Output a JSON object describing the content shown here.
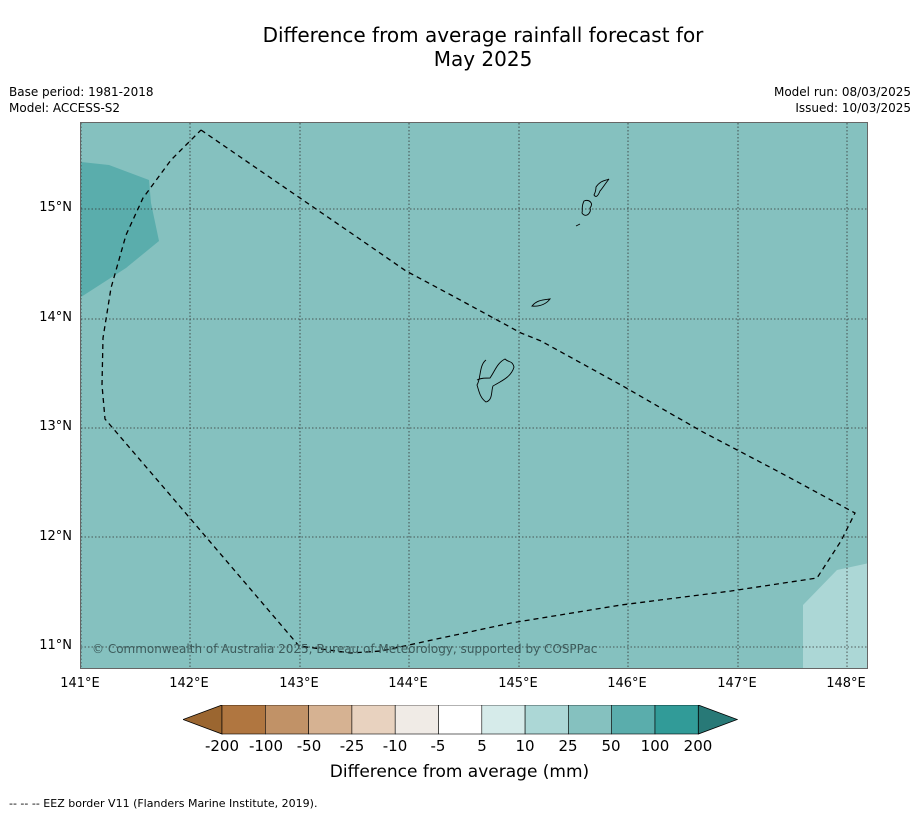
{
  "title_line1": "Difference from average rainfall forecast for",
  "title_line2": "May 2025",
  "meta": {
    "base_period": "Base period: 1981-2018",
    "model": "Model: ACCESS-S2",
    "model_run": "Model run: 08/03/2025",
    "issued": "Issued: 10/03/2025"
  },
  "map": {
    "lat_labels": [
      "15°N",
      "14°N",
      "13°N",
      "12°N",
      "11°N"
    ],
    "lon_labels": [
      "141°E",
      "142°E",
      "143°E",
      "144°E",
      "145°E",
      "146°E",
      "147°E",
      "148°E"
    ],
    "copyright": "© Commonwealth of Australia 2025, Bureau of Meteorology, supported by COSPPac",
    "background_color": "#85c1bf",
    "wet_patch_color": "#5aadac",
    "light_patch_color": "#acd7d6",
    "eez_style": "dashed"
  },
  "colorbar": {
    "title": "Difference from average (mm)",
    "labels": [
      "-200",
      "-100",
      "-50",
      "-25",
      "-10",
      "-5",
      "5",
      "10",
      "25",
      "50",
      "100",
      "200"
    ],
    "colors": [
      "#9b6630",
      "#b07640",
      "#c19267",
      "#d6b292",
      "#e8d2bf",
      "#f0ebe6",
      "#ffffff",
      "#d6ebea",
      "#acd7d6",
      "#85c1bf",
      "#5aadac",
      "#319b98",
      "#287977"
    ]
  },
  "footnote": "--  --  -- EEZ border V11 (Flanders Marine Institute, 2019)."
}
